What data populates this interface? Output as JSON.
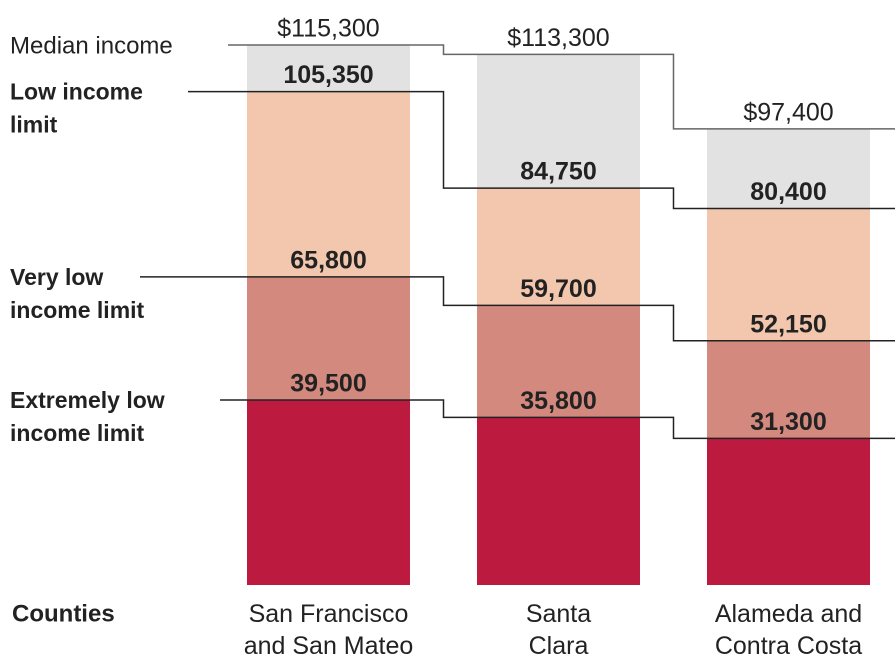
{
  "chart_data": {
    "type": "layered-bar",
    "x_label": "Counties",
    "categories": [
      "San Francisco and San Mateo",
      "Santa Clara",
      "Alameda and Contra Costa"
    ],
    "series": [
      {
        "name": "Median income",
        "color": "#e2e2e2",
        "values": [
          115300,
          113300,
          97400
        ],
        "value_labels": [
          "$115,300",
          "$113,300",
          "$97,400"
        ]
      },
      {
        "name": "Low income limit",
        "color": "#f3c7ae",
        "values": [
          105350,
          84750,
          80400
        ],
        "value_labels": [
          "105,350",
          "84,750",
          "80,400"
        ]
      },
      {
        "name": "Very low income limit",
        "color": "#d4897f",
        "values": [
          65800,
          59700,
          52150
        ],
        "value_labels": [
          "65,800",
          "59,700",
          "52,150"
        ]
      },
      {
        "name": "Extremely low income limit",
        "color": "#bd1a40",
        "values": [
          39500,
          35800,
          31300
        ],
        "value_labels": [
          "39,500",
          "35,800",
          "31,300"
        ]
      }
    ]
  }
}
